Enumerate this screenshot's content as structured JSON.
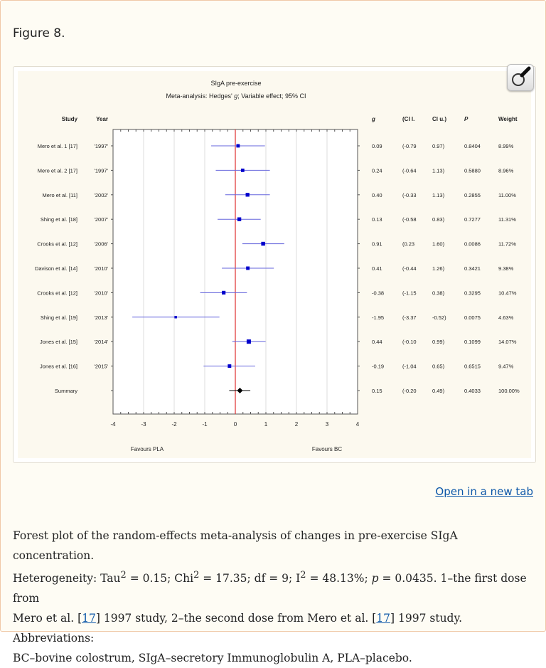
{
  "figure_label": "Figure 8.",
  "open_link": "Open in a new tab",
  "caption": {
    "line1": "Forest plot of the random-effects meta-analysis of changes in pre-exercise SIgA concentration.",
    "part_het": "Heterogeneity: Tau",
    "sup2": "2",
    "tau_val": " = 0.15; Chi",
    "chi_val": " = 17.35; df = 9; I",
    "i2_val": " = 48.13%; ",
    "p_label": "p",
    "p_val": " = 0.0435. 1–the first dose from",
    "line3a": "Mero et al. [",
    "ref17": "17",
    "line3b": "] 1997 study, 2–the second dose from Mero et al. [",
    "line3c": "] 1997 study. Abbreviations:",
    "line4": "BC–bovine colostrum, SIgA–secretory Immunoglobulin A, PLA–placebo."
  },
  "colors": {
    "marker": "#0000cc",
    "ci_line": "#6666dd",
    "zero_line": "#e03030",
    "summary": "#000000"
  },
  "chart_data": {
    "type": "forest",
    "title": "SIgA pre-exercise",
    "subtitle_pre": "Meta-analysis: Hedges' ",
    "subtitle_g": "g",
    "subtitle_post": "; Variable effect; 95% CI",
    "columns": {
      "study": "Study",
      "year": "Year",
      "g": "g",
      "cil": "(CI l.",
      "ciu": "CI u.)",
      "p": "P",
      "weight": "Weight"
    },
    "xlim": [
      -4,
      4
    ],
    "xticks": [
      "-4",
      "-3",
      "-2",
      "-1",
      "0",
      "1",
      "2",
      "3",
      "4"
    ],
    "xlabel_left": "Favours PLA",
    "xlabel_right": "Favours BC",
    "grid": true,
    "rows": [
      {
        "study": "Mero et al. 1 [17]",
        "year": "'1997'",
        "g": 0.09,
        "cil": -0.79,
        "ciu": 0.97,
        "g_t": "0.09",
        "cil_t": "(-0.79",
        "ciu_t": "0.97)",
        "p": "0.8404",
        "weight": "8.99%",
        "w": 8.99
      },
      {
        "study": "Mero et al. 2 [17]",
        "year": "'1997'",
        "g": 0.24,
        "cil": -0.64,
        "ciu": 1.13,
        "g_t": "0.24",
        "cil_t": "(-0.64",
        "ciu_t": "1.13)",
        "p": "0.5880",
        "weight": "8.96%",
        "w": 8.96
      },
      {
        "study": "Mero et al. [11]",
        "year": "'2002'",
        "g": 0.4,
        "cil": -0.33,
        "ciu": 1.13,
        "g_t": "0.40",
        "cil_t": "(-0.33",
        "ciu_t": "1.13)",
        "p": "0.2855",
        "weight": "11.00%",
        "w": 11.0
      },
      {
        "study": "Shing et al. [18]",
        "year": "'2007'",
        "g": 0.13,
        "cil": -0.58,
        "ciu": 0.83,
        "g_t": "0.13",
        "cil_t": "(-0.58",
        "ciu_t": "0.83)",
        "p": "0.7277",
        "weight": "11.31%",
        "w": 11.31
      },
      {
        "study": "Crooks et al. [12]",
        "year": "'2006'",
        "g": 0.91,
        "cil": 0.23,
        "ciu": 1.6,
        "g_t": "0.91",
        "cil_t": "(0.23",
        "ciu_t": "1.60)",
        "p": "0.0086",
        "weight": "11.72%",
        "w": 11.72
      },
      {
        "study": "Davison et al. [14]",
        "year": "'2010'",
        "g": 0.41,
        "cil": -0.44,
        "ciu": 1.26,
        "g_t": "0.41",
        "cil_t": "(-0.44",
        "ciu_t": "1.26)",
        "p": "0.3421",
        "weight": "9.38%",
        "w": 9.38
      },
      {
        "study": "Crooks et al. [12]",
        "year": "'2010'",
        "g": -0.38,
        "cil": -1.15,
        "ciu": 0.38,
        "g_t": "-0.38",
        "cil_t": "(-1.15",
        "ciu_t": "0.38)",
        "p": "0.3295",
        "weight": "10.47%",
        "w": 10.47
      },
      {
        "study": "Shing et al. [19]",
        "year": "'2013'",
        "g": -1.95,
        "cil": -3.37,
        "ciu": -0.52,
        "g_t": "-1.95",
        "cil_t": "(-3.37",
        "ciu_t": "-0.52)",
        "p": "0.0075",
        "weight": "4.63%",
        "w": 4.63
      },
      {
        "study": "Jones et al. [15]",
        "year": "'2014'",
        "g": 0.44,
        "cil": -0.1,
        "ciu": 0.99,
        "g_t": "0.44",
        "cil_t": "(-0.10",
        "ciu_t": "0.99)",
        "p": "0.1099",
        "weight": "14.07%",
        "w": 14.07
      },
      {
        "study": "Jones et al. [16]",
        "year": "'2015'",
        "g": -0.19,
        "cil": -1.04,
        "ciu": 0.65,
        "g_t": "-0.19",
        "cil_t": "(-1.04",
        "ciu_t": "0.65)",
        "p": "0.6515",
        "weight": "9.47%",
        "w": 9.47
      }
    ],
    "summary": {
      "study": "Summary",
      "g": 0.15,
      "cil": -0.2,
      "ciu": 0.49,
      "g_t": "0.15",
      "cil_t": "(-0.20",
      "ciu_t": "0.49)",
      "p": "0.4033",
      "weight": "100.00%"
    }
  }
}
